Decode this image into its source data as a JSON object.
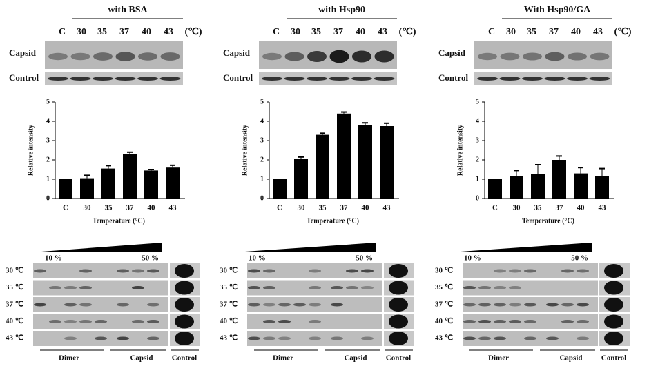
{
  "chart_data": [
    {
      "type": "bar",
      "title": "with BSA",
      "categories": [
        "C",
        "30",
        "35",
        "37",
        "40",
        "43"
      ],
      "values": [
        1,
        1.05,
        1.55,
        2.3,
        1.45,
        1.6
      ],
      "errors": [
        null,
        0.15,
        0.15,
        0.1,
        0.05,
        0.12
      ],
      "color": "#000000",
      "ylim": [
        0,
        5
      ],
      "yticks": [
        0,
        1,
        2,
        3,
        4,
        5
      ],
      "ylabel": "Relative intensity",
      "xlabel": "Temperature (°C)"
    },
    {
      "type": "bar",
      "title": "with Hsp90",
      "categories": [
        "C",
        "30",
        "35",
        "37",
        "40",
        "43"
      ],
      "values": [
        1,
        2.05,
        3.3,
        4.4,
        3.8,
        3.75
      ],
      "errors": [
        null,
        0.1,
        0.08,
        0.08,
        0.12,
        0.15
      ],
      "color": "#000000",
      "ylim": [
        0,
        5
      ],
      "yticks": [
        0,
        1,
        2,
        3,
        4,
        5
      ],
      "ylabel": "Relative intensity",
      "xlabel": "Temperature (°C)"
    },
    {
      "type": "bar",
      "title": "With Hsp90/GA",
      "categories": [
        "C",
        "30",
        "35",
        "37",
        "40",
        "43"
      ],
      "values": [
        1,
        1.15,
        1.25,
        2.0,
        1.3,
        1.15
      ],
      "errors": [
        null,
        0.3,
        0.5,
        0.2,
        0.3,
        0.4
      ],
      "color": "#000000",
      "ylim": [
        0,
        5
      ],
      "yticks": [
        0,
        1,
        2,
        3,
        4,
        5
      ],
      "ylabel": "Relative intensity",
      "xlabel": "Temperature (°C)"
    }
  ],
  "blots": [
    {
      "unit": "(℃)",
      "rows": [
        "Capsid",
        "Control"
      ],
      "gradient": [
        "10 %",
        "50 %"
      ],
      "fractions": [
        "30 ℃",
        "35 ℃",
        "37 ℃",
        "40 ℃",
        "43 ℃"
      ],
      "pools": [
        "Dimer",
        "Capsid",
        "Control"
      ]
    },
    {
      "unit": "(℃)",
      "rows": [
        "Capsid",
        "Control"
      ],
      "gradient": [
        "10 %",
        "50 %"
      ],
      "fractions": [
        "30 ℃",
        "35 ℃",
        "37 ℃",
        "40 ℃",
        "43 ℃"
      ],
      "pools": [
        "Dimer",
        "Capsid",
        "Control"
      ]
    },
    {
      "unit": "(℃)",
      "rows": [
        "Capsid",
        "Control"
      ],
      "gradient": [
        "10 %",
        "50 %"
      ],
      "fractions": [
        "30 ℃",
        "35 ℃",
        "37 ℃",
        "40 ℃",
        "43 ℃"
      ],
      "pools": [
        "Dimer",
        "Capsid",
        "Control"
      ]
    }
  ]
}
